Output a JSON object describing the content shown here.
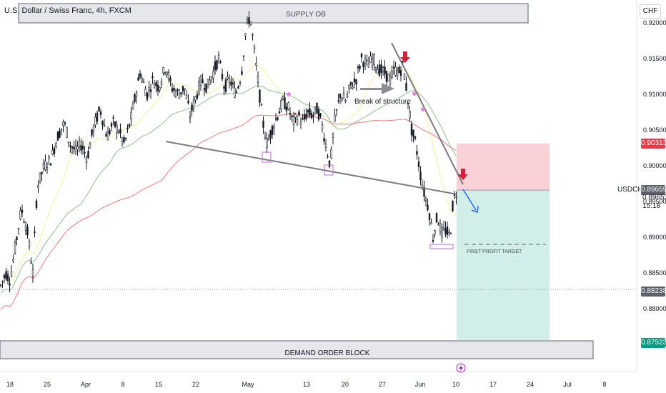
{
  "header": {
    "title": "U.S. Dollar / Swiss Franc, 4h, FXCM"
  },
  "currency_button": "CHF",
  "symbol_label": "USDCHF",
  "last_price": "0.89653",
  "countdown": "15:18",
  "price_tags": {
    "stop": "0.90313",
    "entry": "0.89659",
    "level": "0.88238",
    "target": "0.87523"
  },
  "colors": {
    "stop_tag": "#f23645",
    "entry_tag": "#5d606b",
    "level_tag": "#5d606b",
    "target_tag": "#089981",
    "stop_zone": "#f9c9cf",
    "target_zone": "#c9ebe4",
    "ma_yellow": "#eef59a",
    "ma_green": "#8fbf8f",
    "ma_red": "#ef7c7c",
    "candle": "#131722",
    "trendline": "#7a7a80",
    "projection": "#2962ff",
    "arrow_down": "#d0243a",
    "marker": "#c06ad6",
    "pink_dot": "#e48ad6"
  },
  "chart_data": {
    "type": "candlestick",
    "title": "U.S. Dollar / Swiss Franc, 4h, FXCM",
    "x_ticks": [
      "18",
      "25",
      "Apr",
      "8",
      "15",
      "22",
      "May",
      "13",
      "20",
      "27",
      "Jun",
      "10",
      "17",
      "24",
      "Jul",
      "8"
    ],
    "y_ticks": [
      "0.92000",
      "0.91500",
      "0.91000",
      "0.90500",
      "0.90000",
      "0.89500",
      "0.89000",
      "0.88500",
      "0.88000",
      "0.87500"
    ],
    "ylim": [
      0.8685,
      0.923
    ],
    "price_path": [
      [
        0,
        0.883
      ],
      [
        8,
        0.885
      ],
      [
        14,
        0.884
      ],
      [
        22,
        0.889
      ],
      [
        30,
        0.894
      ],
      [
        38,
        0.891
      ],
      [
        46,
        0.885
      ],
      [
        52,
        0.897
      ],
      [
        62,
        0.9
      ],
      [
        72,
        0.901
      ],
      [
        80,
        0.904
      ],
      [
        90,
        0.906
      ],
      [
        98,
        0.903
      ],
      [
        106,
        0.902
      ],
      [
        114,
        0.903
      ],
      [
        122,
        0.901
      ],
      [
        130,
        0.905
      ],
      [
        140,
        0.908
      ],
      [
        150,
        0.904
      ],
      [
        158,
        0.906
      ],
      [
        166,
        0.905
      ],
      [
        174,
        0.903
      ],
      [
        182,
        0.906
      ],
      [
        188,
        0.909
      ],
      [
        196,
        0.913
      ],
      [
        206,
        0.91
      ],
      [
        214,
        0.912
      ],
      [
        222,
        0.911
      ],
      [
        232,
        0.914
      ],
      [
        240,
        0.911
      ],
      [
        250,
        0.91
      ],
      [
        258,
        0.911
      ],
      [
        266,
        0.907
      ],
      [
        272,
        0.909
      ],
      [
        282,
        0.912
      ],
      [
        290,
        0.911
      ],
      [
        298,
        0.913
      ],
      [
        306,
        0.915
      ],
      [
        314,
        0.911
      ],
      [
        322,
        0.912
      ],
      [
        330,
        0.91
      ],
      [
        338,
        0.913
      ],
      [
        344,
        0.919
      ],
      [
        350,
        0.921
      ],
      [
        356,
        0.916
      ],
      [
        362,
        0.911
      ],
      [
        368,
        0.906
      ],
      [
        374,
        0.903
      ],
      [
        380,
        0.905
      ],
      [
        388,
        0.907
      ],
      [
        396,
        0.909
      ],
      [
        404,
        0.908
      ],
      [
        410,
        0.906
      ],
      [
        418,
        0.907
      ],
      [
        424,
        0.906
      ],
      [
        430,
        0.9075
      ],
      [
        438,
        0.907
      ],
      [
        444,
        0.908
      ],
      [
        450,
        0.906
      ],
      [
        456,
        0.903
      ],
      [
        462,
        0.9
      ],
      [
        468,
        0.906
      ],
      [
        476,
        0.91
      ],
      [
        484,
        0.909
      ],
      [
        490,
        0.911
      ],
      [
        498,
        0.912
      ],
      [
        506,
        0.915
      ],
      [
        514,
        0.914
      ],
      [
        522,
        0.915
      ],
      [
        530,
        0.9135
      ],
      [
        538,
        0.913
      ],
      [
        546,
        0.912
      ],
      [
        552,
        0.9135
      ],
      [
        558,
        0.913
      ],
      [
        564,
        0.914
      ],
      [
        570,
        0.91
      ],
      [
        576,
        0.905
      ],
      [
        582,
        0.903
      ],
      [
        588,
        0.899
      ],
      [
        594,
        0.896
      ],
      [
        600,
        0.894
      ],
      [
        606,
        0.89
      ],
      [
        612,
        0.893
      ],
      [
        618,
        0.8905
      ],
      [
        624,
        0.891
      ],
      [
        630,
        0.89
      ],
      [
        634,
        0.895
      ],
      [
        640,
        0.8966
      ]
    ],
    "annotations": [
      {
        "type": "zone",
        "label": "SUPPLY OB",
        "y_from": 0.92,
        "y_to": 0.9228
      },
      {
        "type": "zone",
        "label": "DEMAND ORDER BLOCK",
        "y_from": 0.8742,
        "y_to": 0.8766
      },
      {
        "type": "text",
        "label": "Break of structure"
      },
      {
        "type": "text",
        "label": "FIRST PROFIT TARGET",
        "y": 0.8886
      },
      {
        "type": "position",
        "side": "short",
        "stop": 0.90313,
        "entry": 0.89659,
        "target": 0.87523
      }
    ],
    "grid": false
  }
}
